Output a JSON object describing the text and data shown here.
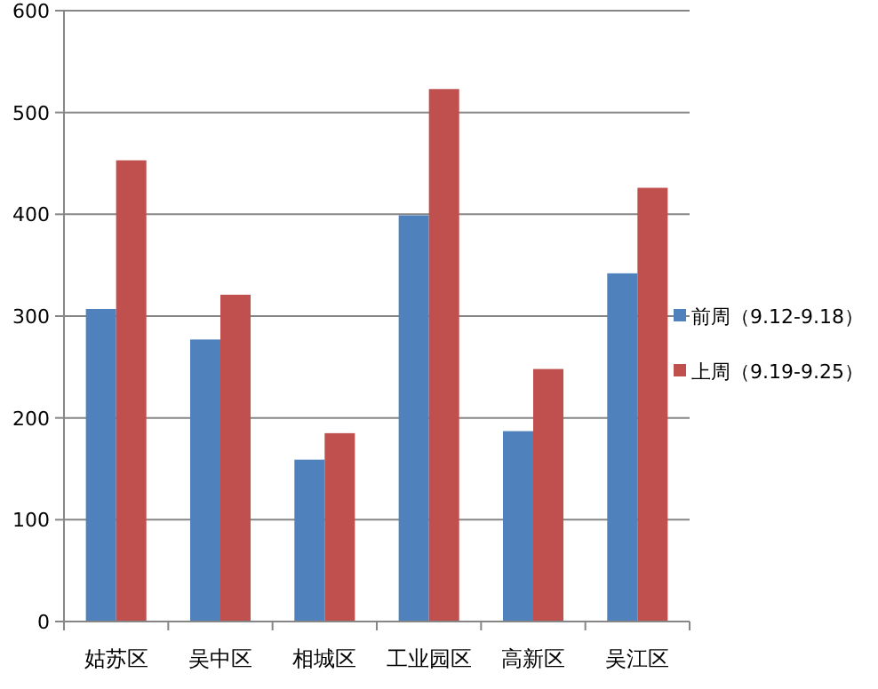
{
  "chart_data": {
    "type": "bar",
    "categories": [
      "姑苏区",
      "吴中区",
      "相城区",
      "工业园区",
      "高新区",
      "吴江区"
    ],
    "series": [
      {
        "name": "前周（9.12-9.18）",
        "color": "#4f81bd",
        "values": [
          307,
          277,
          159,
          399,
          187,
          342
        ]
      },
      {
        "name": "上周（9.19-9.25）",
        "color": "#c0504d",
        "values": [
          453,
          321,
          185,
          523,
          248,
          426
        ]
      }
    ],
    "ylim": [
      0,
      600
    ],
    "yticks": [
      0,
      100,
      200,
      300,
      400,
      500,
      600
    ],
    "grid": "y",
    "legend": "right"
  }
}
